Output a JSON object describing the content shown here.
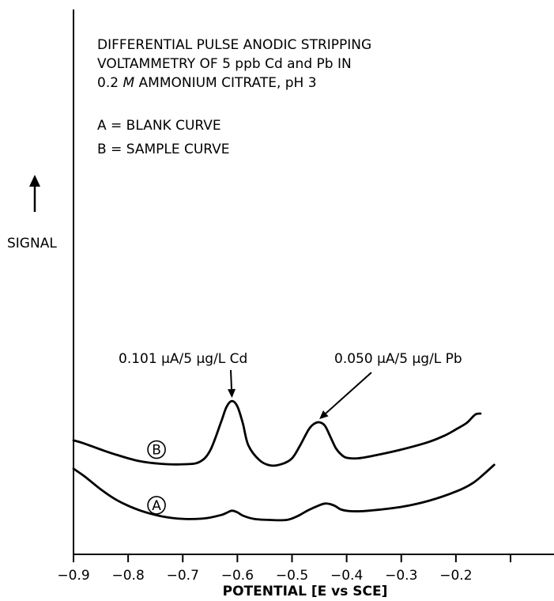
{
  "chart_data": {
    "type": "line",
    "title_lines": [
      "DIFFERENTIAL PULSE ANODIC STRIPPING",
      "VOLTAMMETRY OF 5 ppb Cd and Pb IN"
    ],
    "title_line3": {
      "pre": "0.2 ",
      "italic": "M",
      "post": " AMMONIUM CITRATE, pH 3"
    },
    "legend_lines": [
      "A = BLANK CURVE",
      "B = SAMPLE CURVE"
    ],
    "ylabel": "SIGNAL",
    "xlabel": "POTENTIAL [E vs SCE]",
    "xlim": [
      -0.9,
      -0.1
    ],
    "ylim": [
      0,
      100
    ],
    "xticks": [
      -0.9,
      -0.8,
      -0.7,
      -0.6,
      -0.5,
      -0.4,
      -0.3,
      -0.2,
      -0.1
    ],
    "xtick_labels": [
      "−0.9",
      "−0.8",
      "−0.7",
      "−0.6",
      "−0.5",
      "−0.4",
      "−0.3",
      "−0.2",
      ""
    ],
    "series": [
      {
        "name": "B",
        "x": [
          -0.9,
          -0.88,
          -0.85,
          -0.82,
          -0.78,
          -0.74,
          -0.7,
          -0.67,
          -0.65,
          -0.63,
          -0.62,
          -0.61,
          -0.6,
          -0.59,
          -0.58,
          -0.56,
          -0.54,
          -0.52,
          -0.5,
          -0.485,
          -0.47,
          -0.46,
          -0.45,
          -0.44,
          -0.43,
          -0.42,
          -0.41,
          -0.4,
          -0.38,
          -0.35,
          -0.3,
          -0.25,
          -0.22,
          -0.2,
          -0.18,
          -0.165,
          -0.155
        ],
        "y": [
          20.9,
          20.3,
          19.2,
          18.2,
          17.1,
          16.6,
          16.5,
          16.9,
          19.0,
          24.2,
          27.0,
          28.1,
          27.1,
          24.0,
          20.0,
          17.3,
          16.3,
          16.5,
          17.6,
          20.0,
          22.8,
          23.9,
          24.2,
          23.6,
          21.6,
          19.5,
          18.3,
          17.7,
          17.6,
          18.1,
          19.2,
          20.6,
          21.8,
          22.9,
          24.1,
          25.6,
          25.8
        ]
      },
      {
        "name": "A",
        "x": [
          -0.9,
          -0.88,
          -0.85,
          -0.82,
          -0.78,
          -0.74,
          -0.7,
          -0.66,
          -0.63,
          -0.62,
          -0.61,
          -0.6,
          -0.59,
          -0.57,
          -0.54,
          -0.51,
          -0.49,
          -0.47,
          -0.45,
          -0.44,
          -0.43,
          -0.42,
          -0.41,
          -0.39,
          -0.36,
          -0.3,
          -0.25,
          -0.2,
          -0.17,
          -0.15,
          -0.13
        ],
        "y": [
          15.7,
          14.3,
          11.9,
          9.9,
          8.1,
          7.0,
          6.5,
          6.6,
          7.2,
          7.6,
          8.0,
          7.7,
          7.1,
          6.5,
          6.3,
          6.3,
          7.0,
          8.1,
          9.0,
          9.3,
          9.2,
          8.8,
          8.2,
          7.9,
          8.0,
          8.7,
          9.8,
          11.5,
          13.0,
          14.6,
          16.4
        ]
      }
    ],
    "annotations": [
      {
        "text": "0.101 µA/5 µg/L Cd",
        "target_x": -0.61,
        "target_y": 28.1
      },
      {
        "text": "0.050 µA/5 µg/L Pb",
        "target_x": -0.45,
        "target_y": 24.2
      }
    ],
    "curve_labels": [
      {
        "text": "B",
        "x": -0.748,
        "y": 19.2
      },
      {
        "text": "A",
        "x": -0.748,
        "y": 9.0
      }
    ],
    "grid": false,
    "legend": "top-left"
  }
}
